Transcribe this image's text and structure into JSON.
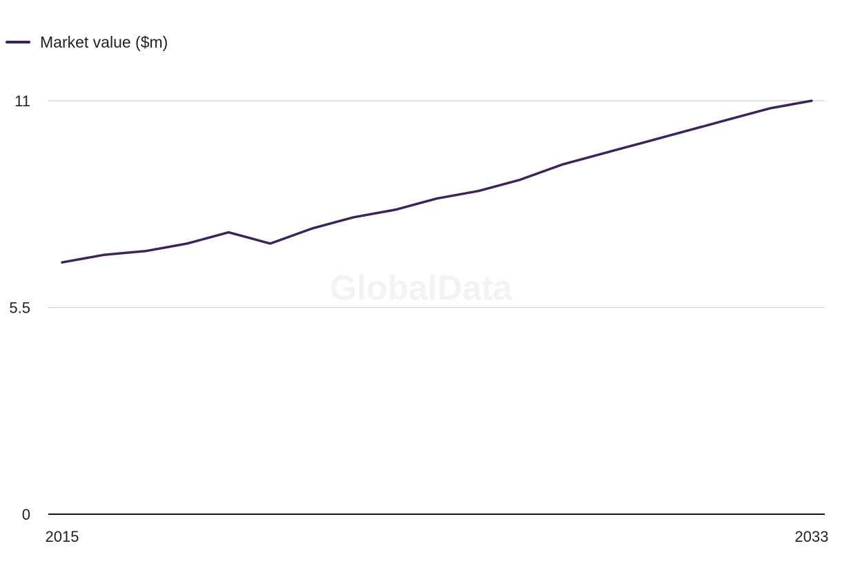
{
  "watermark": "GlobalData",
  "chart_data": {
    "type": "line",
    "title": "",
    "xlabel": "",
    "ylabel": "",
    "x": [
      2015,
      2016,
      2017,
      2018,
      2019,
      2020,
      2021,
      2022,
      2023,
      2024,
      2025,
      2026,
      2027,
      2028,
      2029,
      2030,
      2031,
      2032,
      2033
    ],
    "series": [
      {
        "name": "Market value ($m)",
        "color": "#3b2456",
        "values": [
          6.7,
          6.9,
          7.0,
          7.2,
          7.5,
          7.2,
          7.6,
          7.9,
          8.1,
          8.4,
          8.6,
          8.9,
          9.3,
          9.6,
          9.9,
          10.2,
          10.5,
          10.8,
          11.0
        ]
      }
    ],
    "ylim": [
      0,
      11
    ],
    "yticks": [
      "0",
      "5.5",
      "11"
    ],
    "xtick_labels": [
      "2015",
      "2033"
    ],
    "grid": true,
    "legend_position": "top-left",
    "colors": {
      "line": "#3b2456",
      "grid": "#d9d9d9",
      "axis": "#111111",
      "text": "#222222"
    }
  }
}
